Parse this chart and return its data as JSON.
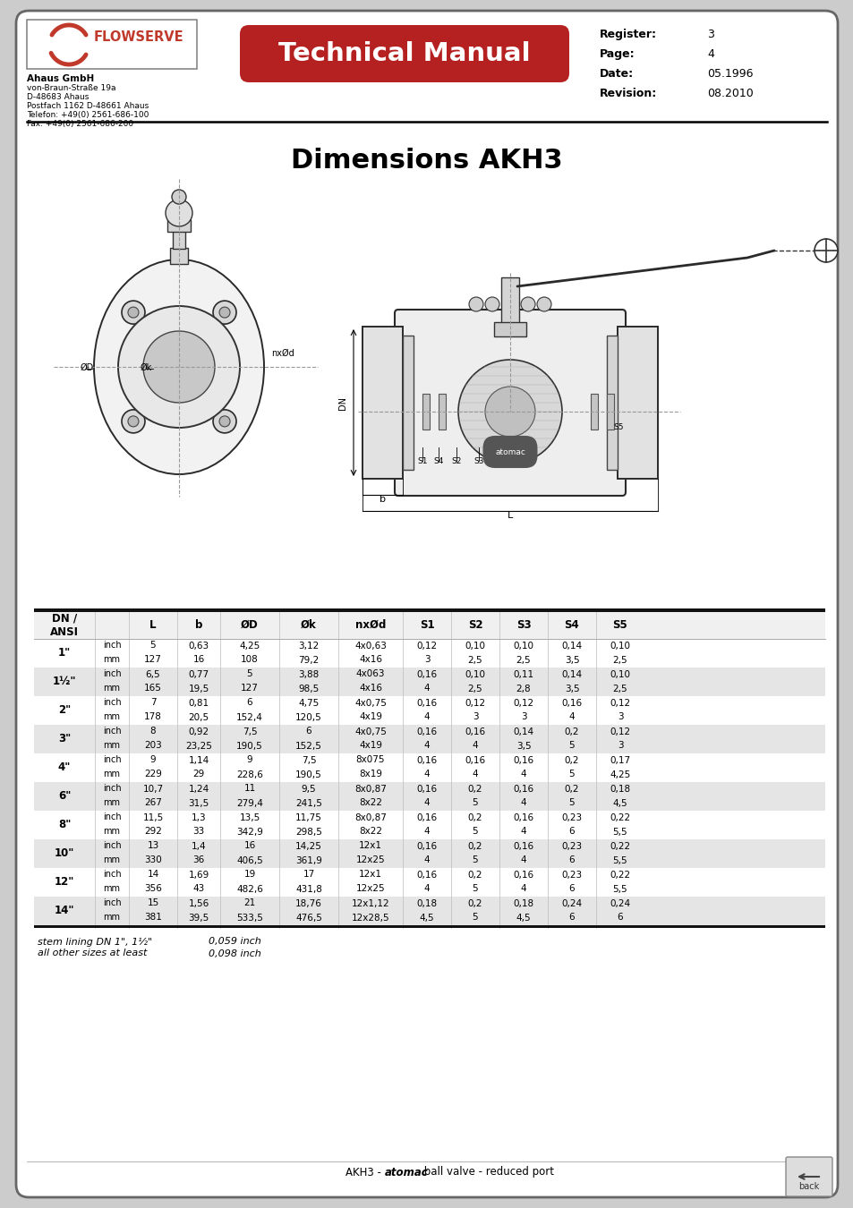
{
  "title": "Dimensions AKH3",
  "header_title": "Technical Manual",
  "company_name": "Ahaus GmbH",
  "company_address": [
    "von-Braun-Straße 19a",
    "D-48683 Ahaus",
    "Postfach 1162 D-48661 Ahaus",
    "Telefon: +49(0) 2561-686-100",
    "Fax: +49(0) 2561-686-200"
  ],
  "register_label": "Register:",
  "register": "3",
  "page_label": "Page:",
  "page": "4",
  "date_label": "Date:",
  "date": "05.1996",
  "revision_label": "Revision:",
  "revision": "08.2010",
  "table_rows": [
    [
      "1\"",
      "inch",
      "5",
      "0,63",
      "4,25",
      "3,12",
      "4x0,63",
      "0,12",
      "0,10",
      "0,10",
      "0,14",
      "0,10"
    ],
    [
      "",
      "mm",
      "127",
      "16",
      "108",
      "79,2",
      "4x16",
      "3",
      "2,5",
      "2,5",
      "3,5",
      "2,5"
    ],
    [
      "1½\"",
      "inch",
      "6,5",
      "0,77",
      "5",
      "3,88",
      "4x063",
      "0,16",
      "0,10",
      "0,11",
      "0,14",
      "0,10"
    ],
    [
      "",
      "mm",
      "165",
      "19,5",
      "127",
      "98,5",
      "4x16",
      "4",
      "2,5",
      "2,8",
      "3,5",
      "2,5"
    ],
    [
      "2\"",
      "inch",
      "7",
      "0,81",
      "6",
      "4,75",
      "4x0,75",
      "0,16",
      "0,12",
      "0,12",
      "0,16",
      "0,12"
    ],
    [
      "",
      "mm",
      "178",
      "20,5",
      "152,4",
      "120,5",
      "4x19",
      "4",
      "3",
      "3",
      "4",
      "3"
    ],
    [
      "3\"",
      "inch",
      "8",
      "0,92",
      "7,5",
      "6",
      "4x0,75",
      "0,16",
      "0,16",
      "0,14",
      "0,2",
      "0,12"
    ],
    [
      "",
      "mm",
      "203",
      "23,25",
      "190,5",
      "152,5",
      "4x19",
      "4",
      "4",
      "3,5",
      "5",
      "3"
    ],
    [
      "4\"",
      "inch",
      "9",
      "1,14",
      "9",
      "7,5",
      "8x075",
      "0,16",
      "0,16",
      "0,16",
      "0,2",
      "0,17"
    ],
    [
      "",
      "mm",
      "229",
      "29",
      "228,6",
      "190,5",
      "8x19",
      "4",
      "4",
      "4",
      "5",
      "4,25"
    ],
    [
      "6\"",
      "inch",
      "10,7",
      "1,24",
      "11",
      "9,5",
      "8x0,87",
      "0,16",
      "0,2",
      "0,16",
      "0,2",
      "0,18"
    ],
    [
      "",
      "mm",
      "267",
      "31,5",
      "279,4",
      "241,5",
      "8x22",
      "4",
      "5",
      "4",
      "5",
      "4,5"
    ],
    [
      "8\"",
      "inch",
      "11,5",
      "1,3",
      "13,5",
      "11,75",
      "8x0,87",
      "0,16",
      "0,2",
      "0,16",
      "0,23",
      "0,22"
    ],
    [
      "",
      "mm",
      "292",
      "33",
      "342,9",
      "298,5",
      "8x22",
      "4",
      "5",
      "4",
      "6",
      "5,5"
    ],
    [
      "10\"",
      "inch",
      "13",
      "1,4",
      "16",
      "14,25",
      "12x1",
      "0,16",
      "0,2",
      "0,16",
      "0,23",
      "0,22"
    ],
    [
      "",
      "mm",
      "330",
      "36",
      "406,5",
      "361,9",
      "12x25",
      "4",
      "5",
      "4",
      "6",
      "5,5"
    ],
    [
      "12\"",
      "inch",
      "14",
      "1,69",
      "19",
      "17",
      "12x1",
      "0,16",
      "0,2",
      "0,16",
      "0,23",
      "0,22"
    ],
    [
      "",
      "mm",
      "356",
      "43",
      "482,6",
      "431,8",
      "12x25",
      "4",
      "5",
      "4",
      "6",
      "5,5"
    ],
    [
      "14\"",
      "inch",
      "15",
      "1,56",
      "21",
      "18,76",
      "12x1,12",
      "0,18",
      "0,2",
      "0,18",
      "0,24",
      "0,24"
    ],
    [
      "",
      "mm",
      "381",
      "39,5",
      "533,5",
      "476,5",
      "12x28,5",
      "4,5",
      "5",
      "4,5",
      "6",
      "6"
    ]
  ],
  "footnote_left1": "stem lining DN 1\", 1½\"",
  "footnote_left2": "all other sizes at least",
  "footnote_right1": "0,059 inch",
  "footnote_right2": "0,098 inch",
  "footer_text_pre": "AKH3 - ",
  "footer_text_bold": "atomac",
  "footer_text_post": " ball valve - reduced port",
  "header_red": "#b52020",
  "row_shaded": "#e5e5e5",
  "row_white": "#ffffff",
  "page_border": "#666666",
  "outer_bg": "#cccccc"
}
